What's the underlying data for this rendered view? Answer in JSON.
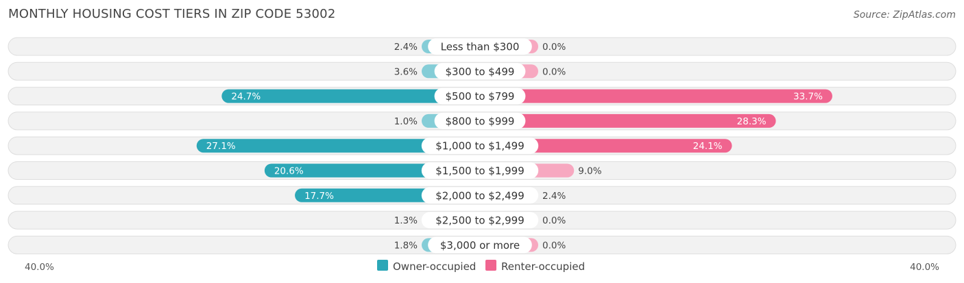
{
  "title": "MONTHLY HOUSING COST TIERS IN ZIP CODE 53002",
  "source": "Source: ZipAtlas.com",
  "colors": {
    "owner_strong": "#2ba7b7",
    "owner_light": "#84cdd7",
    "renter_strong": "#f0648f",
    "renter_light": "#f7a8c0",
    "row_bg": "#f2f2f2",
    "row_border": "#dddddd"
  },
  "chart_data": {
    "type": "bar",
    "orientation": "diverging-horizontal",
    "categories": [
      "Less than $300",
      "$300 to $499",
      "$500 to $799",
      "$800 to $999",
      "$1,000 to $1,499",
      "$1,500 to $1,999",
      "$2,000 to $2,499",
      "$2,500 to $2,999",
      "$3,000 or more"
    ],
    "series": [
      {
        "name": "Owner-occupied",
        "values": [
          2.4,
          3.6,
          24.7,
          1.0,
          27.1,
          20.6,
          17.7,
          1.3,
          1.8
        ],
        "labels": [
          "2.4%",
          "3.6%",
          "24.7%",
          "1.0%",
          "27.1%",
          "20.6%",
          "17.7%",
          "1.3%",
          "1.8%"
        ]
      },
      {
        "name": "Renter-occupied",
        "values": [
          0.0,
          0.0,
          33.7,
          28.3,
          24.1,
          9.0,
          2.4,
          0.0,
          0.0
        ],
        "labels": [
          "0.0%",
          "0.0%",
          "33.7%",
          "28.3%",
          "24.1%",
          "9.0%",
          "2.4%",
          "0.0%",
          "0.0%"
        ]
      }
    ],
    "xlim": [
      -40,
      40
    ],
    "axis_left_label": "40.0%",
    "axis_right_label": "40.0%",
    "legend_position": "bottom-center"
  }
}
